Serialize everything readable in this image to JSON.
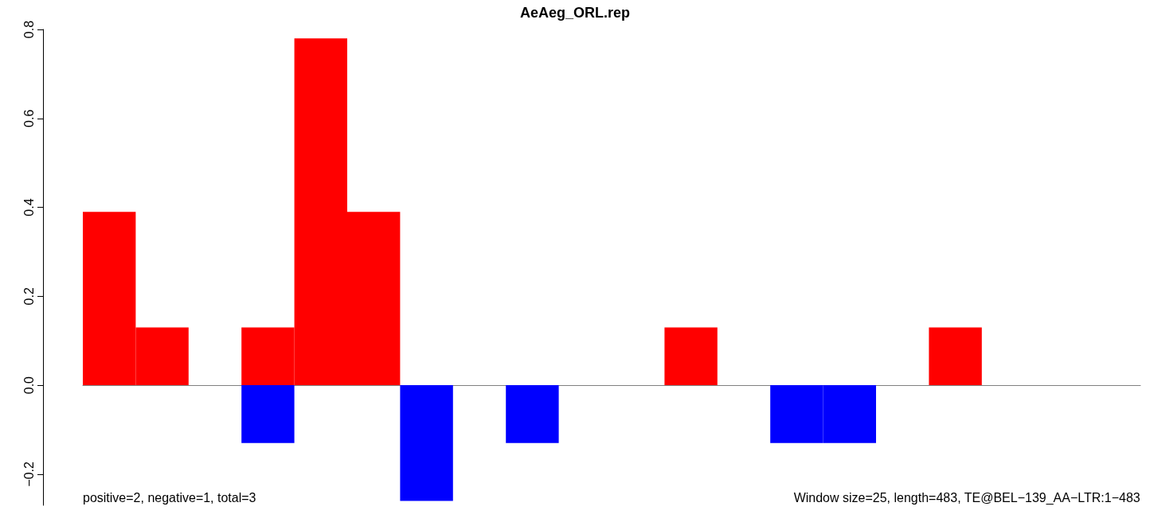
{
  "chart_data": {
    "type": "bar",
    "title": "AeAeg_ORL.rep",
    "categories": [
      null,
      null,
      null,
      null,
      null,
      null,
      null,
      null,
      null,
      null,
      null,
      null,
      null,
      null,
      null,
      null,
      null,
      null,
      null,
      null
    ],
    "series": [
      {
        "color": "#ff0000",
        "values": [
          0.39,
          0.13,
          null,
          0.13,
          0.78,
          0.39,
          null,
          null,
          null,
          null,
          null,
          0.13,
          null,
          null,
          null,
          null,
          0.13,
          null,
          null,
          null
        ]
      },
      {
        "color": "#0000ff",
        "values": [
          null,
          null,
          null,
          -0.13,
          null,
          null,
          -0.26,
          null,
          -0.13,
          null,
          null,
          null,
          null,
          -0.13,
          -0.13,
          null,
          null,
          null,
          null,
          null
        ]
      }
    ],
    "ylim": [
      -0.27,
      0.8
    ],
    "yticks": [
      -0.2,
      {
        "value": 0,
        "label": "0.0"
      },
      0.2,
      0.4,
      0.6,
      0.8
    ],
    "tick_labels": "y",
    "annotations": [
      "positive=2, negative=1, total=3",
      "Window size=25, length=483, TE@BEL−139_AA−LTR:1−483"
    ]
  }
}
